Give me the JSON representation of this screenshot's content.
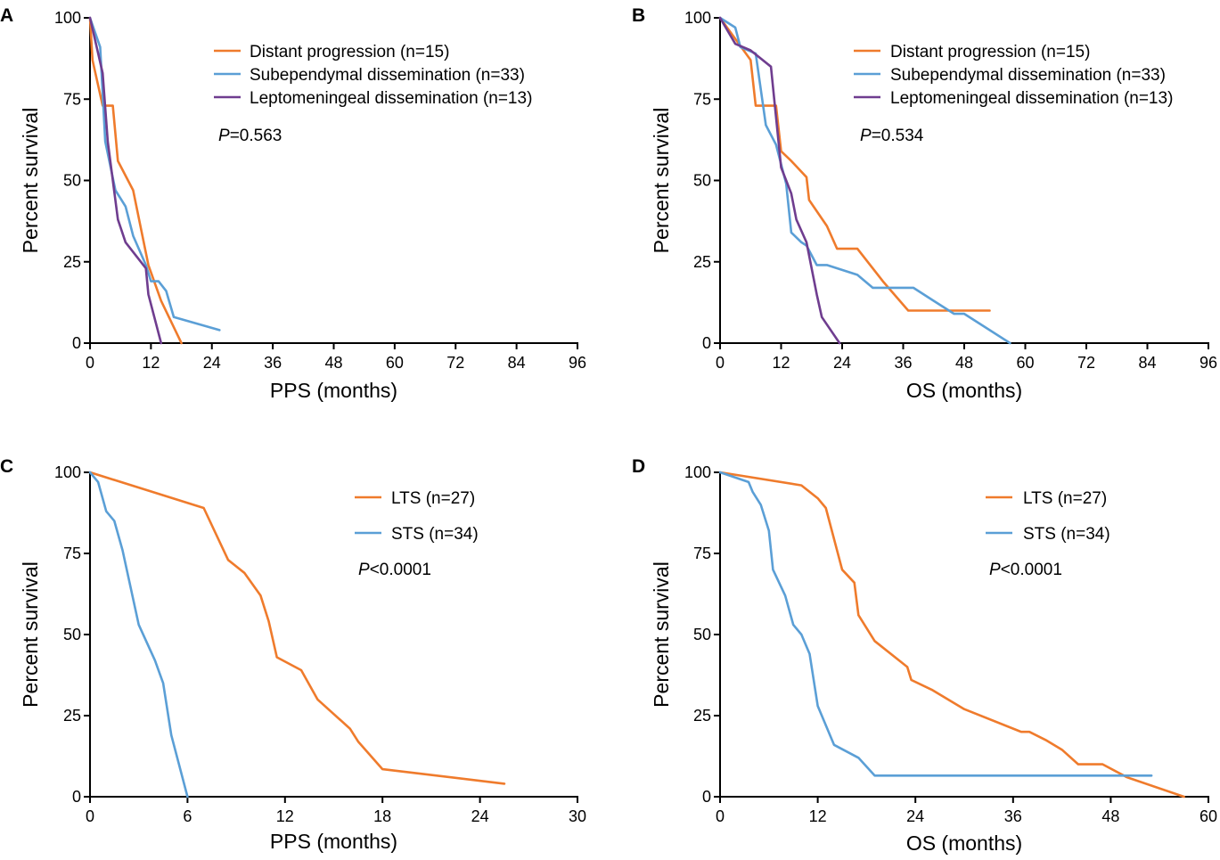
{
  "colors": {
    "orange": "#ef7b2c",
    "blue": "#5b9fd6",
    "purple": "#6f3d8f",
    "axis": "#000000"
  },
  "chart_data": [
    {
      "id": "A",
      "type": "line",
      "panel_label": "A",
      "xlabel": "PPS (months)",
      "ylabel": "Percent survival",
      "xlim": [
        0,
        96
      ],
      "ylim": [
        0,
        100
      ],
      "xticks": [
        "0",
        "12",
        "24",
        "36",
        "48",
        "60",
        "72",
        "84",
        "96"
      ],
      "yticks": [
        "0",
        "25",
        "50",
        "75",
        "100"
      ],
      "xtick_values": [
        0,
        12,
        24,
        36,
        48,
        60,
        72,
        84,
        96
      ],
      "ytick_values": [
        0,
        25,
        50,
        75,
        100
      ],
      "annotation": {
        "italic": "P",
        "rest": "=0.563"
      },
      "series": [
        {
          "name": "Distant progression (n=15)",
          "color": "orange",
          "points": [
            [
              0,
              100
            ],
            [
              0.5,
              87
            ],
            [
              2.5,
              73
            ],
            [
              4.5,
              73
            ],
            [
              5.5,
              56
            ],
            [
              8.5,
              47
            ],
            [
              11.5,
              24
            ],
            [
              14,
              13
            ],
            [
              18,
              0
            ]
          ]
        },
        {
          "name": "Subependymal dissemination (n=33)",
          "color": "blue",
          "points": [
            [
              0,
              100
            ],
            [
              2,
              91
            ],
            [
              3,
              62
            ],
            [
              5,
              47
            ],
            [
              7,
              42
            ],
            [
              8.5,
              33
            ],
            [
              11,
              24
            ],
            [
              12,
              19
            ],
            [
              13.5,
              19
            ],
            [
              15,
              16
            ],
            [
              16.5,
              8
            ],
            [
              25.5,
              4
            ]
          ]
        },
        {
          "name": "Leptomeningeal dissemination (n=13)",
          "color": "purple",
          "points": [
            [
              0,
              100
            ],
            [
              2.5,
              83
            ],
            [
              3.5,
              62
            ],
            [
              5.5,
              38
            ],
            [
              7,
              31
            ],
            [
              11,
              23
            ],
            [
              11.5,
              15
            ],
            [
              14,
              0
            ]
          ]
        }
      ]
    },
    {
      "id": "B",
      "type": "line",
      "panel_label": "B",
      "xlabel": "OS (months)",
      "ylabel": "Percent survival",
      "xlim": [
        0,
        96
      ],
      "ylim": [
        0,
        100
      ],
      "xticks": [
        "0",
        "12",
        "24",
        "36",
        "48",
        "60",
        "72",
        "84",
        "96"
      ],
      "yticks": [
        "0",
        "25",
        "50",
        "75",
        "100"
      ],
      "xtick_values": [
        0,
        12,
        24,
        36,
        48,
        60,
        72,
        84,
        96
      ],
      "ytick_values": [
        0,
        25,
        50,
        75,
        100
      ],
      "annotation": {
        "italic": "P",
        "rest": "=0.534"
      },
      "series": [
        {
          "name": "Distant progression (n=15)",
          "color": "orange",
          "points": [
            [
              0,
              100
            ],
            [
              6,
              87
            ],
            [
              7,
              73
            ],
            [
              11,
              73
            ],
            [
              12,
              59
            ],
            [
              14,
              56
            ],
            [
              17,
              51
            ],
            [
              17.5,
              44
            ],
            [
              21,
              36
            ],
            [
              23,
              29
            ],
            [
              27,
              29
            ],
            [
              32,
              19
            ],
            [
              37,
              10
            ],
            [
              50,
              10
            ],
            [
              53,
              10
            ]
          ]
        },
        {
          "name": "Subependymal dissemination (n=33)",
          "color": "blue",
          "points": [
            [
              0,
              100
            ],
            [
              3,
              97
            ],
            [
              4,
              91
            ],
            [
              7,
              89
            ],
            [
              9,
              67
            ],
            [
              11,
              61
            ],
            [
              13,
              49
            ],
            [
              14,
              34
            ],
            [
              16,
              31
            ],
            [
              17,
              30
            ],
            [
              19,
              24
            ],
            [
              21,
              24
            ],
            [
              27,
              21
            ],
            [
              30,
              17
            ],
            [
              38,
              17
            ],
            [
              42,
              13
            ],
            [
              46,
              9
            ],
            [
              48,
              9
            ],
            [
              57,
              0
            ]
          ]
        },
        {
          "name": "Leptomeningeal dissemination (n=13)",
          "color": "purple",
          "points": [
            [
              0,
              100
            ],
            [
              3,
              92
            ],
            [
              6,
              90
            ],
            [
              10,
              85
            ],
            [
              12,
              54
            ],
            [
              14,
              46
            ],
            [
              15,
              38
            ],
            [
              17,
              31
            ],
            [
              19,
              15
            ],
            [
              20,
              8
            ],
            [
              23.5,
              0
            ]
          ]
        }
      ]
    },
    {
      "id": "C",
      "type": "line",
      "panel_label": "C",
      "xlabel": "PPS (months)",
      "ylabel": "Percent survival",
      "xlim": [
        0,
        30
      ],
      "ylim": [
        0,
        100
      ],
      "xticks": [
        "0",
        "6",
        "12",
        "18",
        "24",
        "30"
      ],
      "yticks": [
        "0",
        "25",
        "50",
        "75",
        "100"
      ],
      "xtick_values": [
        0,
        6,
        12,
        18,
        24,
        30
      ],
      "ytick_values": [
        0,
        25,
        50,
        75,
        100
      ],
      "annotation": {
        "italic": "P",
        "rest": "<0.0001"
      },
      "series": [
        {
          "name": "LTS (n=27)",
          "color": "orange",
          "points": [
            [
              0,
              100
            ],
            [
              7,
              89
            ],
            [
              8.5,
              73
            ],
            [
              9.5,
              69
            ],
            [
              10.5,
              62
            ],
            [
              11,
              54
            ],
            [
              11.5,
              43
            ],
            [
              13,
              39
            ],
            [
              14,
              30
            ],
            [
              16,
              21
            ],
            [
              16.5,
              17
            ],
            [
              18,
              8.5
            ],
            [
              25.5,
              4
            ]
          ]
        },
        {
          "name": "STS (n=34)",
          "color": "blue",
          "points": [
            [
              0,
              100
            ],
            [
              0.5,
              97
            ],
            [
              1,
              88
            ],
            [
              1.5,
              85
            ],
            [
              2,
              76
            ],
            [
              3,
              53
            ],
            [
              4,
              42
            ],
            [
              4.5,
              35
            ],
            [
              5,
              19
            ],
            [
              6,
              0
            ]
          ]
        }
      ]
    },
    {
      "id": "D",
      "type": "line",
      "panel_label": "D",
      "xlabel": "OS (months)",
      "ylabel": "Percent survival",
      "xlim": [
        0,
        60
      ],
      "ylim": [
        0,
        100
      ],
      "xticks": [
        "0",
        "12",
        "24",
        "36",
        "48",
        "60"
      ],
      "yticks": [
        "0",
        "25",
        "50",
        "75",
        "100"
      ],
      "xtick_values": [
        0,
        12,
        24,
        36,
        48,
        60
      ],
      "ytick_values": [
        0,
        25,
        50,
        75,
        100
      ],
      "annotation": {
        "italic": "P",
        "rest": "<0.0001"
      },
      "series": [
        {
          "name": "LTS (n=27)",
          "color": "orange",
          "points": [
            [
              0,
              100
            ],
            [
              10,
              96
            ],
            [
              12,
              92
            ],
            [
              13,
              89
            ],
            [
              15,
              70
            ],
            [
              16.5,
              66
            ],
            [
              17,
              56
            ],
            [
              19,
              48
            ],
            [
              23,
              40
            ],
            [
              23.5,
              36
            ],
            [
              26,
              33
            ],
            [
              30,
              27
            ],
            [
              37,
              20
            ],
            [
              38,
              20
            ],
            [
              40,
              17.5
            ],
            [
              42,
              14.5
            ],
            [
              44,
              10
            ],
            [
              47,
              10
            ],
            [
              50,
              6
            ],
            [
              57,
              0
            ]
          ]
        },
        {
          "name": "STS (n=34)",
          "color": "blue",
          "points": [
            [
              0,
              100
            ],
            [
              3.5,
              97
            ],
            [
              4,
              94
            ],
            [
              5,
              90
            ],
            [
              6,
              82
            ],
            [
              6.5,
              70
            ],
            [
              8,
              62
            ],
            [
              9,
              53
            ],
            [
              10,
              50
            ],
            [
              11,
              44
            ],
            [
              12,
              28
            ],
            [
              14,
              16
            ],
            [
              17,
              12
            ],
            [
              19,
              6.5
            ],
            [
              48,
              6.5
            ],
            [
              53,
              6.5
            ]
          ]
        }
      ]
    }
  ]
}
